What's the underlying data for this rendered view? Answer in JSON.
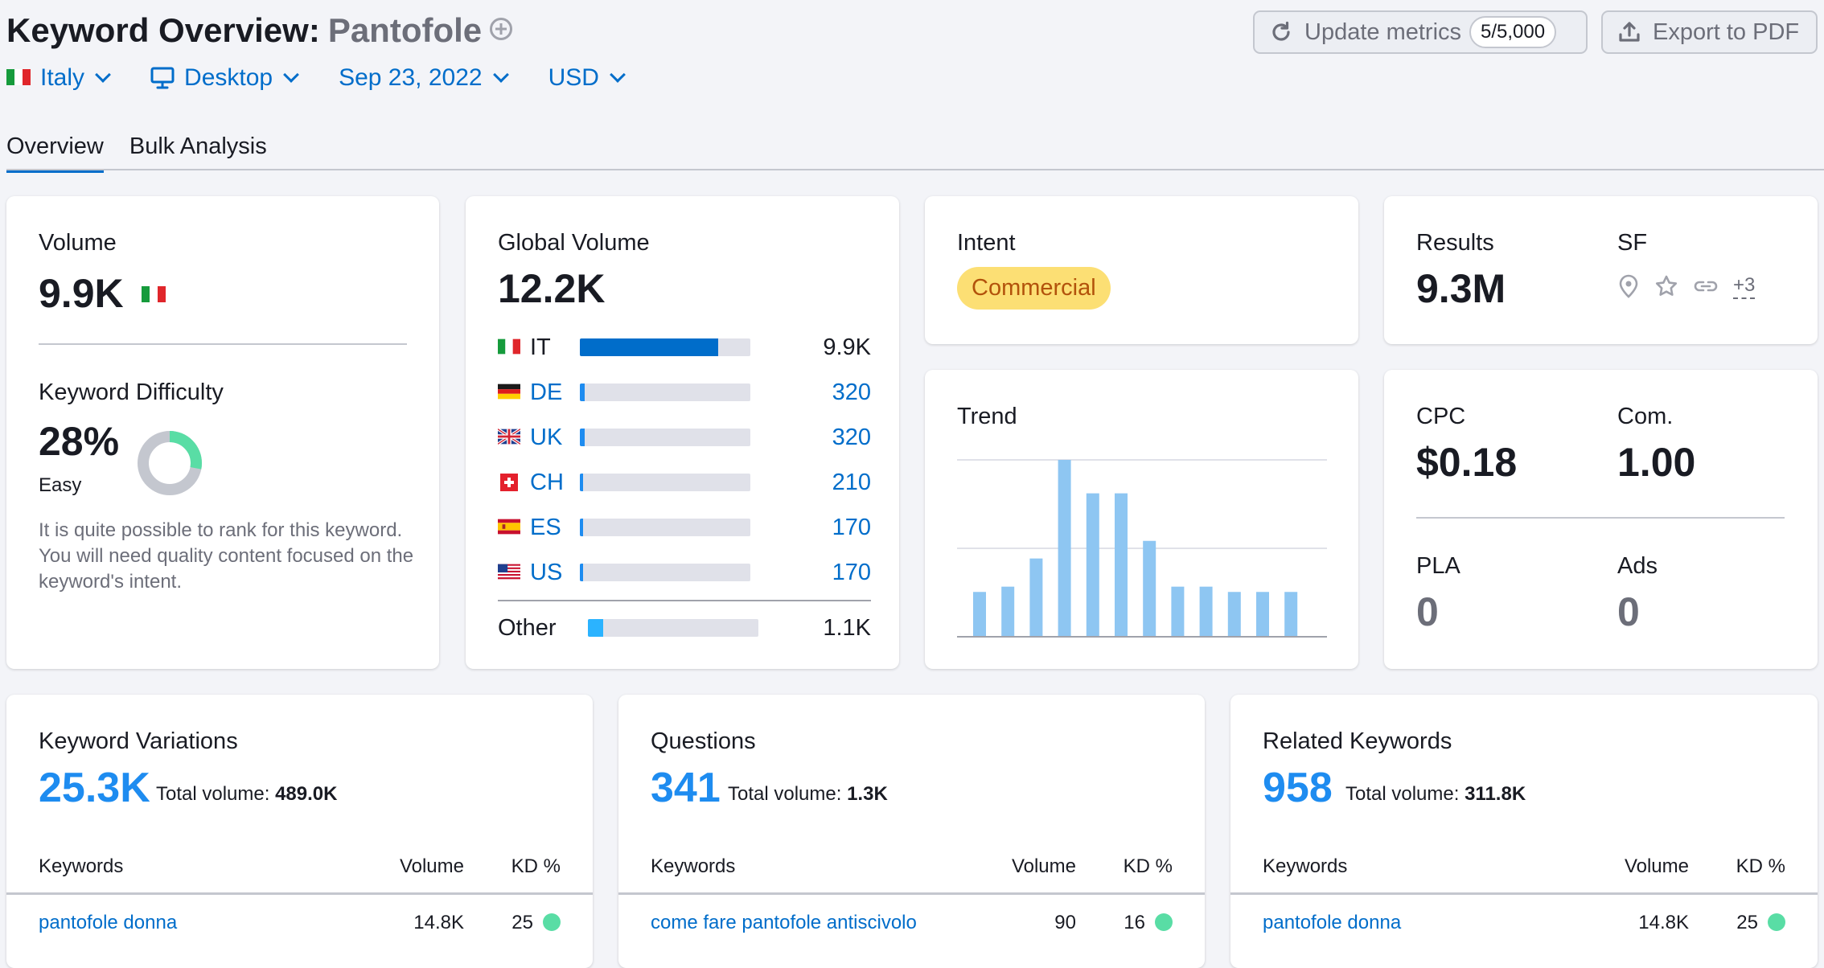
{
  "header": {
    "title": "Keyword Overview:",
    "keyword": "Pantofole",
    "update_label": "Update metrics",
    "update_count": "5/5,000",
    "export_label": "Export to PDF"
  },
  "filters": {
    "country": "Italy",
    "device": "Desktop",
    "date": "Sep 23, 2022",
    "currency": "USD"
  },
  "tabs": [
    {
      "label": "Overview",
      "active": true
    },
    {
      "label": "Bulk Analysis",
      "active": false
    }
  ],
  "volume": {
    "label": "Volume",
    "value": "9.9K",
    "kd_label": "Keyword Difficulty",
    "kd_value": "28%",
    "kd_percent": 28,
    "kd_level": "Easy",
    "kd_description": "It is quite possible to rank for this keyword. You will need quality content focused on the keyword's intent.",
    "kd_color": "#59dda5"
  },
  "global_volume": {
    "label": "Global Volume",
    "value": "12.2K",
    "countries": [
      {
        "code": "IT",
        "value": "9.9K",
        "share": 0.81
      },
      {
        "code": "DE",
        "value": "320",
        "share": 0.03
      },
      {
        "code": "UK",
        "value": "320",
        "share": 0.03
      },
      {
        "code": "CH",
        "value": "210",
        "share": 0.02
      },
      {
        "code": "ES",
        "value": "170",
        "share": 0.02
      },
      {
        "code": "US",
        "value": "170",
        "share": 0.02
      }
    ],
    "other": {
      "label": "Other",
      "value": "1.1K",
      "share": 0.09
    }
  },
  "intent": {
    "label": "Intent",
    "value": "Commercial"
  },
  "results": {
    "label": "Results",
    "value": "9.3M",
    "sf_label": "SF",
    "sf_icons": [
      "location-icon",
      "star-icon",
      "link-icon"
    ],
    "sf_more": "+3"
  },
  "trend": {
    "label": "Trend"
  },
  "chart_data": {
    "type": "bar",
    "values": [
      0.25,
      0.28,
      0.44,
      1.0,
      0.81,
      0.81,
      0.54,
      0.28,
      0.28,
      0.25,
      0.25,
      0.25
    ],
    "ylim": [
      0,
      1
    ],
    "grid": true
  },
  "cpc": {
    "cpc_label": "CPC",
    "cpc_value": "$0.18",
    "com_label": "Com.",
    "com_value": "1.00",
    "pla_label": "PLA",
    "pla_value": "0",
    "ads_label": "Ads",
    "ads_value": "0"
  },
  "variations": {
    "label": "Keyword Variations",
    "count": "25.3K",
    "tv_label": "Total volume:",
    "tv_value": "489.0K",
    "columns": [
      "Keywords",
      "Volume",
      "KD %"
    ],
    "rows": [
      {
        "keyword": "pantofole donna",
        "volume": "14.8K",
        "kd": "25"
      }
    ]
  },
  "questions": {
    "label": "Questions",
    "count": "341",
    "tv_label": "Total volume:",
    "tv_value": "1.3K",
    "columns": [
      "Keywords",
      "Volume",
      "KD %"
    ],
    "rows": [
      {
        "keyword": "come fare pantofole antiscivolo",
        "volume": "90",
        "kd": "16"
      }
    ]
  },
  "related": {
    "label": "Related Keywords",
    "count": "958",
    "tv_label": "Total volume:",
    "tv_value": "311.8K",
    "columns": [
      "Keywords",
      "Volume",
      "KD %"
    ],
    "rows": [
      {
        "keyword": "pantofole donna",
        "volume": "14.8K",
        "kd": "25"
      }
    ]
  }
}
